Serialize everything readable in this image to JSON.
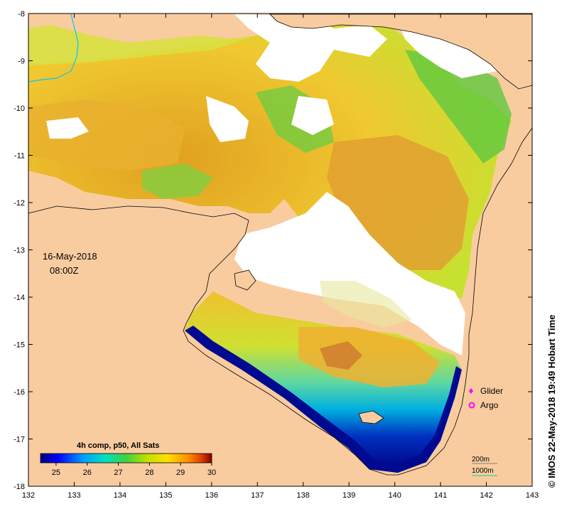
{
  "map": {
    "lon_ticks": [
      "132",
      "133",
      "134",
      "135",
      "136",
      "137",
      "138",
      "139",
      "140",
      "141",
      "142",
      "143"
    ],
    "lat_ticks": [
      "-8",
      "-9",
      "-10",
      "-11",
      "-12",
      "-13",
      "-14",
      "-15",
      "-16",
      "-17",
      "-18"
    ],
    "lon_range": [
      132,
      143
    ],
    "lat_range": [
      -8,
      -18
    ],
    "date": "16-May-2018",
    "time": "08:00Z",
    "colors": {
      "land": "#f9cc9f",
      "no_data": "#ffffff",
      "coast": "#000000",
      "river": "#00c8ff"
    }
  },
  "colorbar": {
    "title": "4h comp, p50, All Sats",
    "ticks": [
      "25",
      "26",
      "27",
      "28",
      "29",
      "30"
    ],
    "range": [
      24.5,
      30
    ]
  },
  "legend": {
    "glider": "Glider",
    "argo": "Argo",
    "glider_color": "#ff00ff",
    "argo_color": "#ff00ff"
  },
  "isobaths": {
    "shallow": "200m",
    "deep": "1000m"
  },
  "credit": "© IMOS 22-May-2018 19:49 Hobart Time"
}
